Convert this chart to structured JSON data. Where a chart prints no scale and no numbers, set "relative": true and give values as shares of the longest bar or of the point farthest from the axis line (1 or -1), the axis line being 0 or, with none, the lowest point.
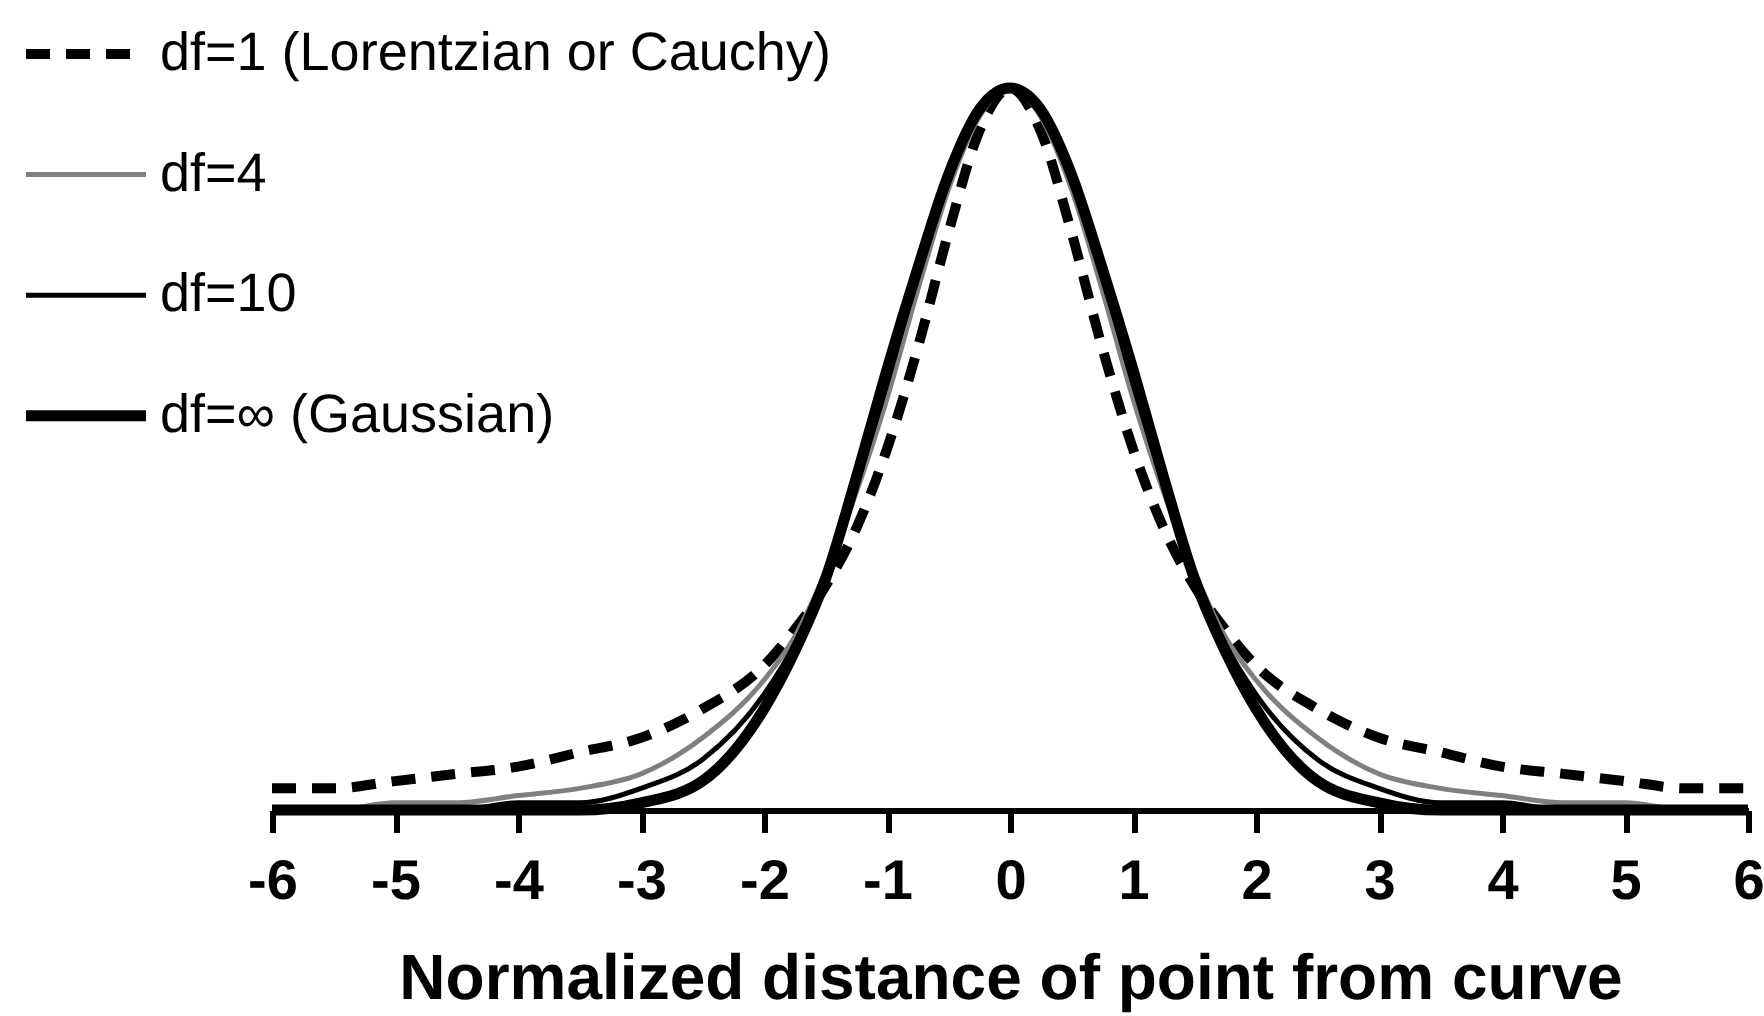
{
  "chart_data": {
    "type": "line",
    "relative": true,
    "xlabel": "Normalized distance of point from curve",
    "xlim": [
      -6,
      6
    ],
    "xticks": [
      -6,
      -5,
      -4,
      -3,
      -2,
      -1,
      0,
      1,
      2,
      3,
      4,
      5,
      6
    ],
    "grid": false,
    "legend": "top left",
    "line_style": "solid",
    "x": [
      -6,
      -5.5,
      -5,
      -4.5,
      -4,
      -3.5,
      -3,
      -2.5,
      -2,
      -1.75,
      -1.5,
      -1.25,
      -1,
      -0.75,
      -0.5,
      -0.25,
      0,
      0.25,
      0.5,
      0.75,
      1,
      1.25,
      1.5,
      1.75,
      2,
      2.5,
      3,
      3.5,
      4,
      4.5,
      5,
      5.5,
      6
    ],
    "series": [
      {
        "name": "df=1 (Lorentzian or Cauchy)",
        "color": "#000000",
        "line_style": "dashed",
        "values": [
          0.03,
          0.03,
          0.04,
          0.05,
          0.06,
          0.08,
          0.1,
          0.14,
          0.2,
          0.25,
          0.31,
          0.39,
          0.5,
          0.64,
          0.8,
          0.94,
          1.0,
          0.94,
          0.8,
          0.64,
          0.5,
          0.39,
          0.31,
          0.25,
          0.2,
          0.14,
          0.1,
          0.08,
          0.06,
          0.05,
          0.04,
          0.03,
          0.03
        ]
      },
      {
        "name": "df=4",
        "color": "#808080",
        "values": [
          0.0,
          0.0,
          0.01,
          0.01,
          0.02,
          0.03,
          0.05,
          0.1,
          0.18,
          0.24,
          0.33,
          0.44,
          0.57,
          0.72,
          0.86,
          0.96,
          1.0,
          0.96,
          0.86,
          0.72,
          0.57,
          0.44,
          0.33,
          0.24,
          0.18,
          0.1,
          0.05,
          0.03,
          0.02,
          0.01,
          0.01,
          0.0,
          0.0
        ]
      },
      {
        "name": "df=10",
        "color": "#000000",
        "values": [
          0.0,
          0.0,
          0.0,
          0.0,
          0.01,
          0.01,
          0.03,
          0.07,
          0.16,
          0.23,
          0.33,
          0.45,
          0.59,
          0.74,
          0.87,
          0.97,
          1.0,
          0.97,
          0.87,
          0.74,
          0.59,
          0.45,
          0.33,
          0.23,
          0.16,
          0.07,
          0.03,
          0.01,
          0.01,
          0.0,
          0.0,
          0.0,
          0.0
        ]
      },
      {
        "name": "df=∞ (Gaussian)",
        "color": "#000000",
        "values": [
          0.0,
          0.0,
          0.0,
          0.0,
          0.0,
          0.0,
          0.01,
          0.04,
          0.14,
          0.22,
          0.32,
          0.46,
          0.61,
          0.75,
          0.88,
          0.97,
          1.0,
          0.97,
          0.88,
          0.75,
          0.61,
          0.46,
          0.32,
          0.22,
          0.14,
          0.04,
          0.01,
          0.0,
          0.0,
          0.0,
          0.0,
          0.0,
          0.0
        ]
      }
    ]
  }
}
